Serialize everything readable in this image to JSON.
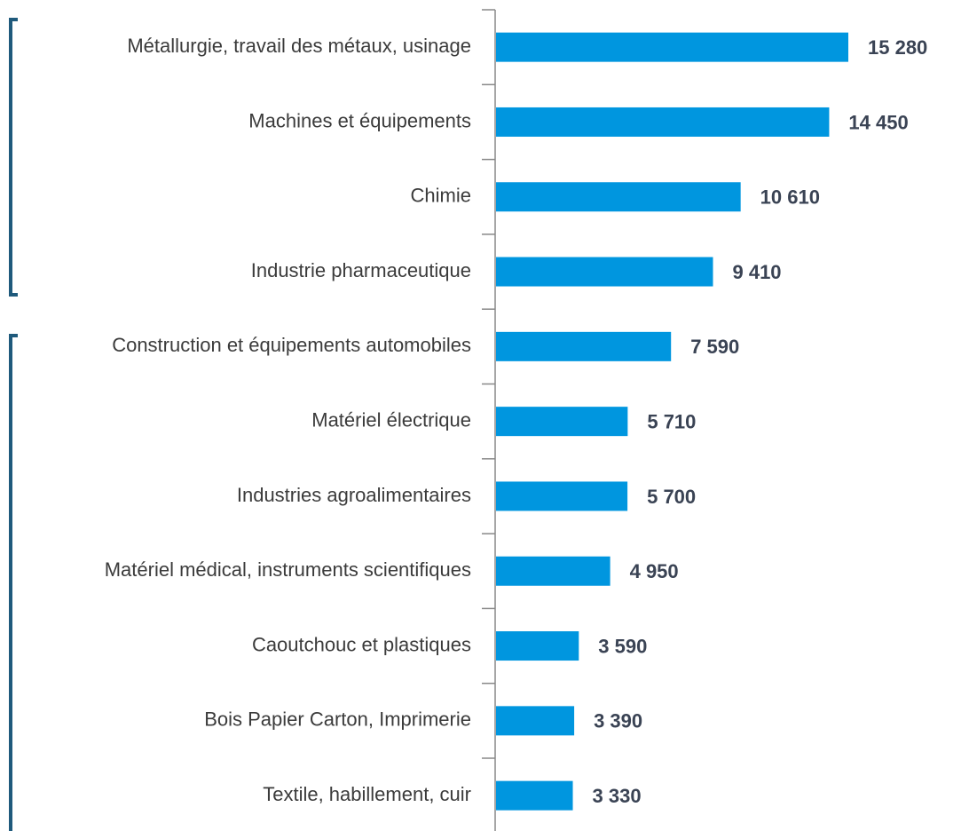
{
  "chart_data": {
    "type": "bar",
    "orientation": "horizontal",
    "categories": [
      "Métallurgie, travail des métaux, usinage",
      "Machines et équipements",
      "Chimie",
      "Industrie pharmaceutique",
      "Construction et équipements automobiles",
      "Matériel électrique",
      "Industries agroalimentaires",
      "Matériel médical, instruments scientifiques",
      "Caoutchouc et plastiques",
      "Bois Papier Carton, Imprimerie",
      "Textile, habillement, cuir"
    ],
    "values": [
      15280,
      14450,
      10610,
      9410,
      7590,
      5710,
      5700,
      4950,
      3590,
      3390,
      3330
    ],
    "value_labels": [
      "15 280",
      "14 450",
      "10 610",
      "9 410",
      "7 590",
      "5 710",
      "5 700",
      "4 950",
      "3 590",
      "3 390",
      "3 330"
    ],
    "color": "#0096df"
  }
}
